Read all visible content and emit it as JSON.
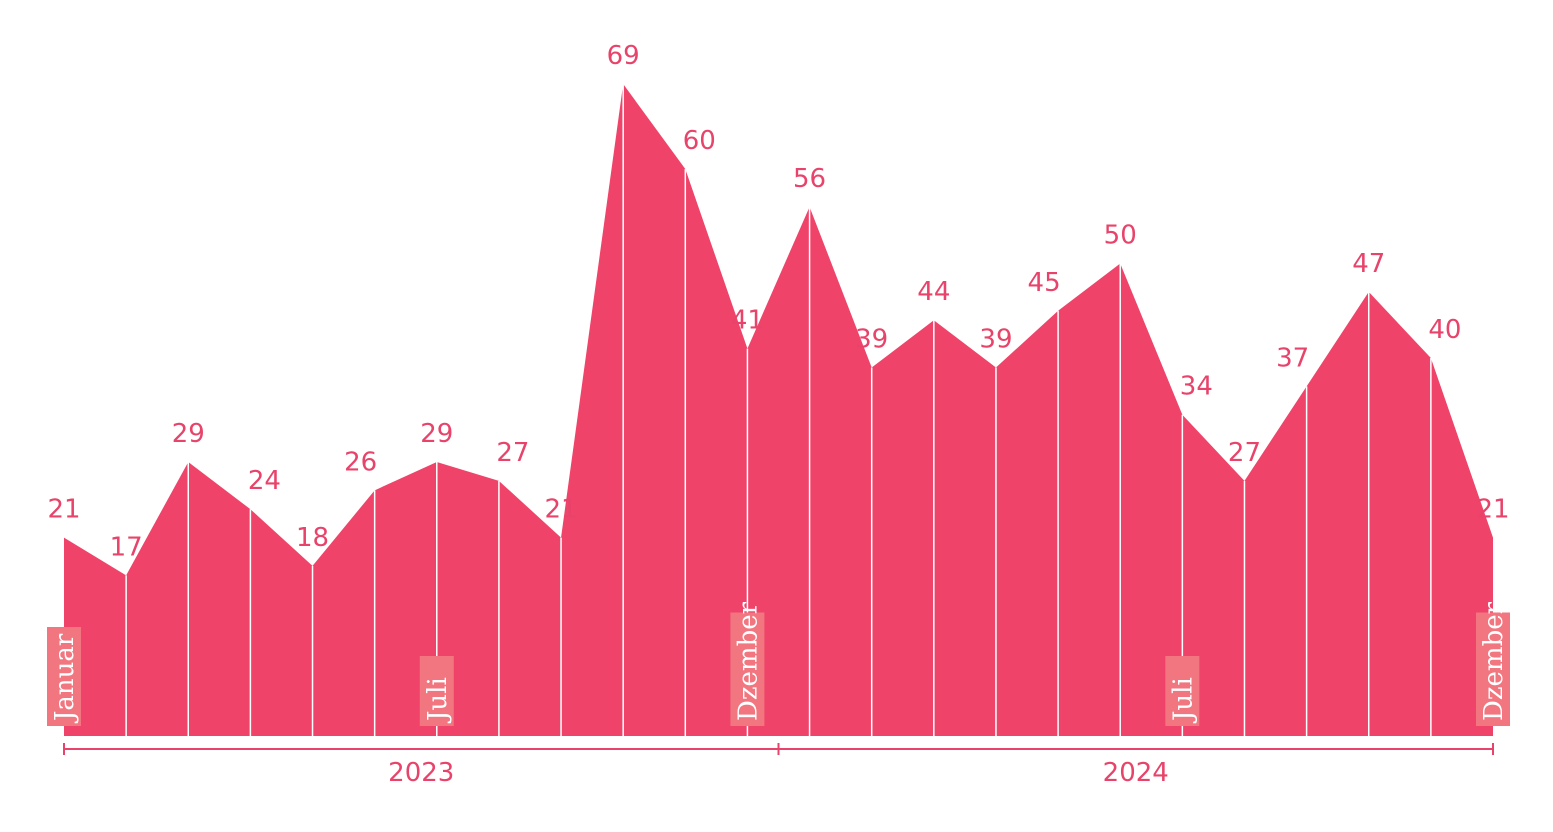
{
  "colors": {
    "area": "#ef4369",
    "label_text": "#e8436a",
    "marker_box": "#f2767f",
    "divider": "#ffffff"
  },
  "chart_data": {
    "type": "area",
    "x": [
      "2023-01",
      "2023-02",
      "2023-03",
      "2023-04",
      "2023-05",
      "2023-06",
      "2023-07",
      "2023-08",
      "2023-09",
      "2023-10",
      "2023-11",
      "2023-12",
      "2024-01",
      "2024-02",
      "2024-03",
      "2024-04",
      "2024-05",
      "2024-06",
      "2024-07",
      "2024-08",
      "2024-09",
      "2024-10",
      "2024-11",
      "2024-12"
    ],
    "values": [
      21,
      17,
      29,
      24,
      18,
      26,
      29,
      27,
      21,
      69,
      60,
      41,
      56,
      39,
      44,
      39,
      45,
      50,
      34,
      27,
      37,
      47,
      40,
      21
    ],
    "month_markers": [
      {
        "index": 0,
        "label": "Januar"
      },
      {
        "index": 6,
        "label": "Juli"
      },
      {
        "index": 11,
        "label": "Dzember"
      },
      {
        "index": 18,
        "label": "Juli"
      },
      {
        "index": 23,
        "label": "Dzember"
      }
    ],
    "years": [
      {
        "label": "2023",
        "start_index": 0,
        "end_index": 11
      },
      {
        "label": "2024",
        "start_index": 12,
        "end_index": 23
      }
    ],
    "ylim": [
      0,
      69
    ],
    "grid": false,
    "legend": "none"
  }
}
